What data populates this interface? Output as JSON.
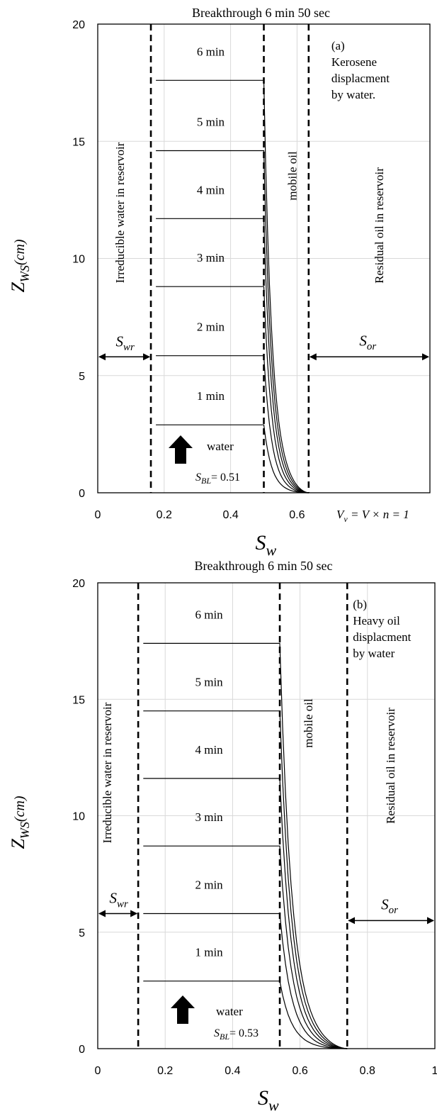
{
  "chart_data": [
    {
      "id": "a",
      "type": "line",
      "title": "Breakthrough 6 min 50 sec",
      "ylabel": "Z",
      "ylabel_sub": "WS",
      "ylabel_unit": "(cm)",
      "xlabel": "S",
      "xlabel_sub": "w",
      "xlim": [
        0,
        1
      ],
      "ylim": [
        0,
        20
      ],
      "x_ticks": [
        {
          "value": 0,
          "label": "0"
        },
        {
          "value": 0.2,
          "label": "0.2"
        },
        {
          "value": 0.4,
          "label": "0.4"
        },
        {
          "value": 0.6,
          "label": "0.6"
        }
      ],
      "y_ticks": [
        0,
        5,
        10,
        15,
        20
      ],
      "grid": true,
      "extra_x_label": "V",
      "extra_x_label_sub": "v",
      "extra_x_label_eq": "= V × n = 1",
      "vlines": [
        0.16,
        0.5,
        0.635
      ],
      "zone_labels": {
        "irreducible": "Irreducible water in reservoir",
        "mobile": "mobile oil",
        "residual": "Residual oil in reservoir"
      },
      "annotation": [
        "(a)",
        "Kerosene",
        "displacment",
        "by water."
      ],
      "swr_label": "S",
      "swr_sub": "wr",
      "sor_label": "S",
      "sor_sub": "or",
      "sbl_label": "S",
      "sbl_sub": "BL",
      "sbl_value": "= 0.51",
      "water_label": "water",
      "arrow_y": 5.8,
      "s_front": 0.5,
      "s_end": 0.635,
      "series": [
        {
          "name": "1 min",
          "front_height": 2.9
        },
        {
          "name": "2 min",
          "front_height": 5.85
        },
        {
          "name": "3 min",
          "front_height": 8.8
        },
        {
          "name": "4 min",
          "front_height": 11.7
        },
        {
          "name": "5 min",
          "front_height": 14.6
        },
        {
          "name": "6 min",
          "front_height": 17.6
        }
      ],
      "series_label_x": 0.34
    },
    {
      "id": "b",
      "type": "line",
      "title": "Breakthrough 6 min 50 sec",
      "ylabel": "Z",
      "ylabel_sub": "WS",
      "ylabel_unit": "(cm)",
      "xlabel": "S",
      "xlabel_sub": "w",
      "xlim": [
        0,
        1
      ],
      "ylim": [
        0,
        20
      ],
      "x_ticks": [
        {
          "value": 0,
          "label": "0"
        },
        {
          "value": 0.2,
          "label": "0.2"
        },
        {
          "value": 0.4,
          "label": "0.4"
        },
        {
          "value": 0.6,
          "label": "0.6"
        },
        {
          "value": 0.8,
          "label": "0.8"
        },
        {
          "value": 1,
          "label": "1"
        }
      ],
      "y_ticks": [
        0,
        5,
        10,
        15,
        20
      ],
      "grid": true,
      "vlines": [
        0.12,
        0.54,
        0.74
      ],
      "zone_labels": {
        "irreducible": "Irreducible water in reservoir",
        "mobile": "mobile oil",
        "residual": "Residual oil in reservoir"
      },
      "annotation": [
        "(b)",
        "Heavy oil",
        "displacment",
        "by water"
      ],
      "swr_label": "S",
      "swr_sub": "wr",
      "sor_label": "S",
      "sor_sub": "or",
      "sbl_label": "S",
      "sbl_sub": "BL",
      "sbl_value": "= 0.53",
      "water_label": "water",
      "arrow_y": 5.8,
      "sor_arrow_y": 5.5,
      "s_front": 0.54,
      "s_end": 0.74,
      "series": [
        {
          "name": "1 min",
          "front_height": 2.9
        },
        {
          "name": "2 min",
          "front_height": 5.8
        },
        {
          "name": "3 min",
          "front_height": 8.7
        },
        {
          "name": "4 min",
          "front_height": 11.6
        },
        {
          "name": "5 min",
          "front_height": 14.5
        },
        {
          "name": "6 min",
          "front_height": 17.4
        }
      ],
      "series_label_x": 0.33
    }
  ]
}
